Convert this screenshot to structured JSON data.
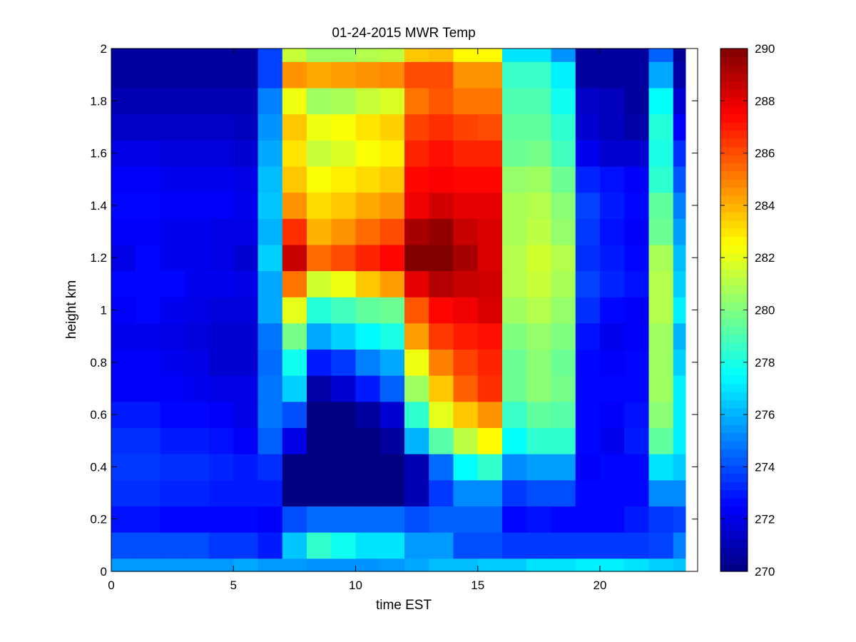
{
  "chart_data": {
    "type": "heatmap",
    "title": "01-24-2015 MWR Temp",
    "xlabel": "time EST",
    "ylabel": "height km",
    "xlim": [
      0,
      24
    ],
    "ylim": [
      0,
      2
    ],
    "xticks": [
      "0",
      "5",
      "10",
      "15",
      "20"
    ],
    "yticks": [
      "0",
      "0.2",
      "0.4",
      "0.6",
      "0.8",
      "1",
      "1.2",
      "1.4",
      "1.6",
      "1.8",
      "2"
    ],
    "x": [
      0,
      1,
      2,
      3,
      4,
      5,
      6,
      7,
      8,
      9,
      10,
      11,
      12,
      13,
      14,
      15,
      16,
      17,
      18,
      19,
      20,
      21,
      22,
      23
    ],
    "y": [
      0,
      0.05,
      0.15,
      0.25,
      0.35,
      0.45,
      0.55,
      0.65,
      0.75,
      0.85,
      0.95,
      1.05,
      1.15,
      1.25,
      1.35,
      1.45,
      1.55,
      1.65,
      1.75,
      1.85,
      1.95
    ],
    "colorbar": {
      "range": [
        270,
        290
      ],
      "ticks": [
        "270",
        "272",
        "274",
        "276",
        "278",
        "280",
        "282",
        "284",
        "286",
        "288",
        "290"
      ],
      "colormap": "jet"
    },
    "values": [
      [
        275.5,
        275.5,
        275.5,
        275.5,
        275.5,
        275.8,
        275.5,
        275.5,
        275.4,
        275.4,
        275.4,
        275.5,
        275.8,
        276.2,
        276.2,
        276.5,
        276.5,
        277.0,
        277.0,
        277.2,
        277.2,
        277.0,
        276.6,
        276.4
      ],
      [
        274.0,
        274.0,
        274.0,
        274.0,
        273.6,
        273.6,
        273.0,
        276.4,
        278.5,
        277.8,
        277.0,
        277.0,
        275.5,
        275.5,
        274.0,
        274.0,
        273.6,
        273.6,
        273.6,
        273.6,
        273.6,
        273.6,
        273.8,
        275.0
      ],
      [
        272.8,
        272.8,
        272.6,
        272.6,
        272.6,
        272.6,
        272.4,
        274.0,
        274.6,
        274.6,
        274.6,
        274.6,
        274.0,
        274.4,
        274.4,
        274.4,
        272.6,
        272.8,
        272.6,
        272.6,
        272.6,
        273.0,
        273.6,
        273.8
      ],
      [
        273.4,
        273.4,
        273.2,
        273.2,
        273.0,
        273.0,
        273.0,
        270.0,
        270.0,
        270.0,
        270.0,
        270.0,
        271.0,
        273.6,
        275.2,
        275.2,
        273.6,
        274.0,
        274.0,
        272.6,
        272.6,
        272.6,
        275.2,
        275.2
      ],
      [
        273.6,
        273.6,
        273.4,
        273.4,
        273.2,
        273.0,
        273.4,
        270.0,
        270.0,
        270.0,
        270.0,
        270.0,
        271.0,
        274.6,
        277.5,
        278.5,
        275.2,
        275.6,
        275.6,
        272.4,
        272.6,
        272.6,
        277.0,
        276.5
      ],
      [
        273.4,
        273.4,
        273.0,
        273.0,
        272.8,
        272.4,
        274.4,
        272.0,
        270.0,
        270.0,
        270.0,
        270.6,
        276.0,
        279.2,
        281.2,
        282.6,
        277.6,
        278.4,
        278.4,
        272.6,
        272.2,
        273.0,
        279.4,
        277.2
      ],
      [
        273.0,
        273.0,
        272.6,
        272.6,
        272.4,
        272.0,
        274.8,
        274.0,
        270.0,
        270.0,
        270.6,
        271.6,
        278.4,
        282.0,
        283.6,
        284.6,
        278.6,
        279.4,
        279.2,
        272.6,
        272.4,
        272.8,
        280.2,
        277.2
      ],
      [
        272.4,
        272.4,
        272.4,
        272.2,
        272.0,
        272.0,
        274.8,
        276.6,
        270.8,
        271.6,
        273.0,
        274.4,
        280.6,
        283.6,
        285.6,
        286.6,
        279.6,
        280.2,
        279.8,
        272.6,
        272.6,
        272.6,
        280.6,
        277.2
      ],
      [
        272.4,
        272.4,
        272.2,
        272.0,
        271.6,
        271.6,
        274.6,
        277.8,
        273.0,
        273.6,
        275.0,
        275.8,
        282.2,
        285.0,
        286.2,
        286.8,
        279.6,
        280.2,
        279.6,
        272.6,
        272.4,
        272.6,
        280.6,
        276.6
      ],
      [
        272.2,
        272.2,
        272.0,
        271.8,
        271.6,
        271.6,
        274.8,
        279.8,
        275.8,
        276.6,
        277.4,
        278.0,
        284.4,
        286.4,
        287.0,
        287.2,
        280.0,
        280.4,
        280.0,
        272.8,
        272.2,
        272.4,
        280.6,
        276.0
      ],
      [
        272.4,
        272.6,
        272.2,
        272.0,
        271.8,
        271.8,
        275.8,
        282.0,
        278.2,
        278.8,
        279.4,
        279.6,
        285.8,
        287.4,
        287.8,
        288.2,
        280.6,
        281.0,
        280.4,
        273.4,
        272.6,
        272.4,
        281.0,
        277.2
      ],
      [
        272.6,
        272.6,
        272.6,
        272.2,
        272.2,
        272.0,
        275.8,
        285.2,
        281.6,
        282.2,
        283.6,
        284.4,
        288.0,
        289.0,
        288.6,
        288.4,
        281.0,
        281.4,
        280.8,
        273.8,
        273.2,
        272.8,
        281.0,
        276.6
      ],
      [
        272.0,
        272.6,
        272.2,
        272.2,
        272.0,
        271.6,
        276.6,
        288.6,
        285.4,
        286.0,
        286.8,
        287.4,
        290.0,
        290.0,
        289.2,
        288.2,
        281.0,
        281.6,
        281.0,
        273.4,
        273.0,
        272.6,
        280.8,
        276.2
      ],
      [
        272.4,
        272.4,
        272.2,
        272.2,
        272.0,
        272.0,
        276.0,
        286.6,
        284.0,
        284.6,
        285.4,
        286.0,
        289.2,
        289.6,
        288.6,
        288.2,
        280.8,
        281.2,
        280.4,
        273.6,
        272.8,
        272.4,
        279.6,
        275.6
      ],
      [
        272.6,
        272.6,
        272.4,
        272.4,
        272.4,
        272.2,
        276.4,
        284.6,
        283.2,
        283.6,
        284.2,
        284.6,
        287.8,
        288.4,
        288.0,
        288.0,
        280.8,
        281.0,
        280.2,
        273.8,
        273.0,
        272.6,
        279.4,
        275.0
      ],
      [
        272.4,
        272.4,
        272.2,
        272.2,
        272.2,
        272.0,
        276.2,
        283.6,
        282.4,
        282.8,
        283.2,
        283.6,
        287.4,
        287.6,
        287.4,
        287.4,
        280.4,
        280.6,
        279.6,
        273.2,
        272.8,
        272.4,
        278.4,
        274.2
      ],
      [
        272.0,
        272.0,
        271.8,
        271.8,
        271.8,
        271.6,
        275.8,
        283.0,
        281.4,
        281.8,
        282.4,
        282.8,
        286.8,
        287.2,
        286.8,
        286.8,
        279.6,
        279.8,
        278.8,
        272.2,
        271.6,
        271.6,
        278.0,
        273.4
      ],
      [
        271.4,
        271.4,
        271.4,
        271.4,
        271.4,
        271.2,
        275.4,
        283.6,
        282.2,
        282.4,
        283.0,
        283.4,
        286.2,
        286.6,
        286.2,
        286.0,
        279.4,
        279.4,
        278.4,
        271.6,
        271.2,
        270.8,
        278.2,
        272.4
      ],
      [
        271.0,
        271.0,
        271.0,
        271.0,
        271.0,
        271.0,
        275.0,
        282.2,
        280.6,
        280.8,
        281.4,
        281.8,
        285.2,
        285.8,
        285.2,
        285.2,
        279.0,
        279.0,
        277.8,
        271.4,
        271.2,
        270.6,
        277.6,
        271.6
      ],
      [
        270.6,
        270.6,
        270.6,
        270.6,
        270.6,
        270.6,
        273.8,
        284.6,
        284.2,
        284.4,
        284.6,
        284.8,
        286.0,
        286.0,
        284.6,
        284.6,
        278.6,
        278.6,
        277.2,
        270.6,
        270.6,
        270.6,
        275.8,
        270.8
      ],
      [
        270.6,
        270.6,
        270.6,
        270.6,
        270.6,
        270.6,
        273.8,
        281.4,
        280.6,
        280.6,
        281.0,
        281.2,
        283.6,
        283.8,
        282.6,
        282.6,
        277.0,
        277.0,
        275.4,
        270.6,
        270.6,
        270.6,
        274.4,
        270.4
      ]
    ]
  }
}
